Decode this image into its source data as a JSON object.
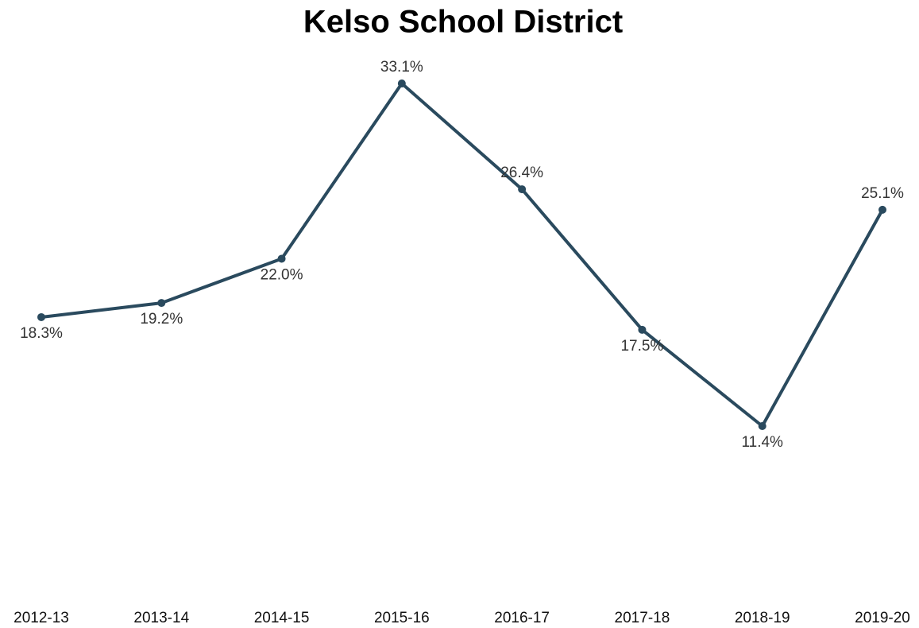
{
  "chart_data": {
    "type": "line",
    "title": "Kelso School District",
    "categories": [
      "2012-13",
      "2013-14",
      "2014-15",
      "2015-16",
      "2016-17",
      "2017-18",
      "2018-19",
      "2019-20"
    ],
    "values": [
      18.3,
      19.2,
      22.0,
      33.1,
      26.4,
      17.5,
      11.4,
      25.1
    ],
    "value_labels": [
      "18.3%",
      "19.2%",
      "22.0%",
      "33.1%",
      "26.4%",
      "17.5%",
      "11.4%",
      "25.1%"
    ],
    "color": "#2a4a5e"
  }
}
